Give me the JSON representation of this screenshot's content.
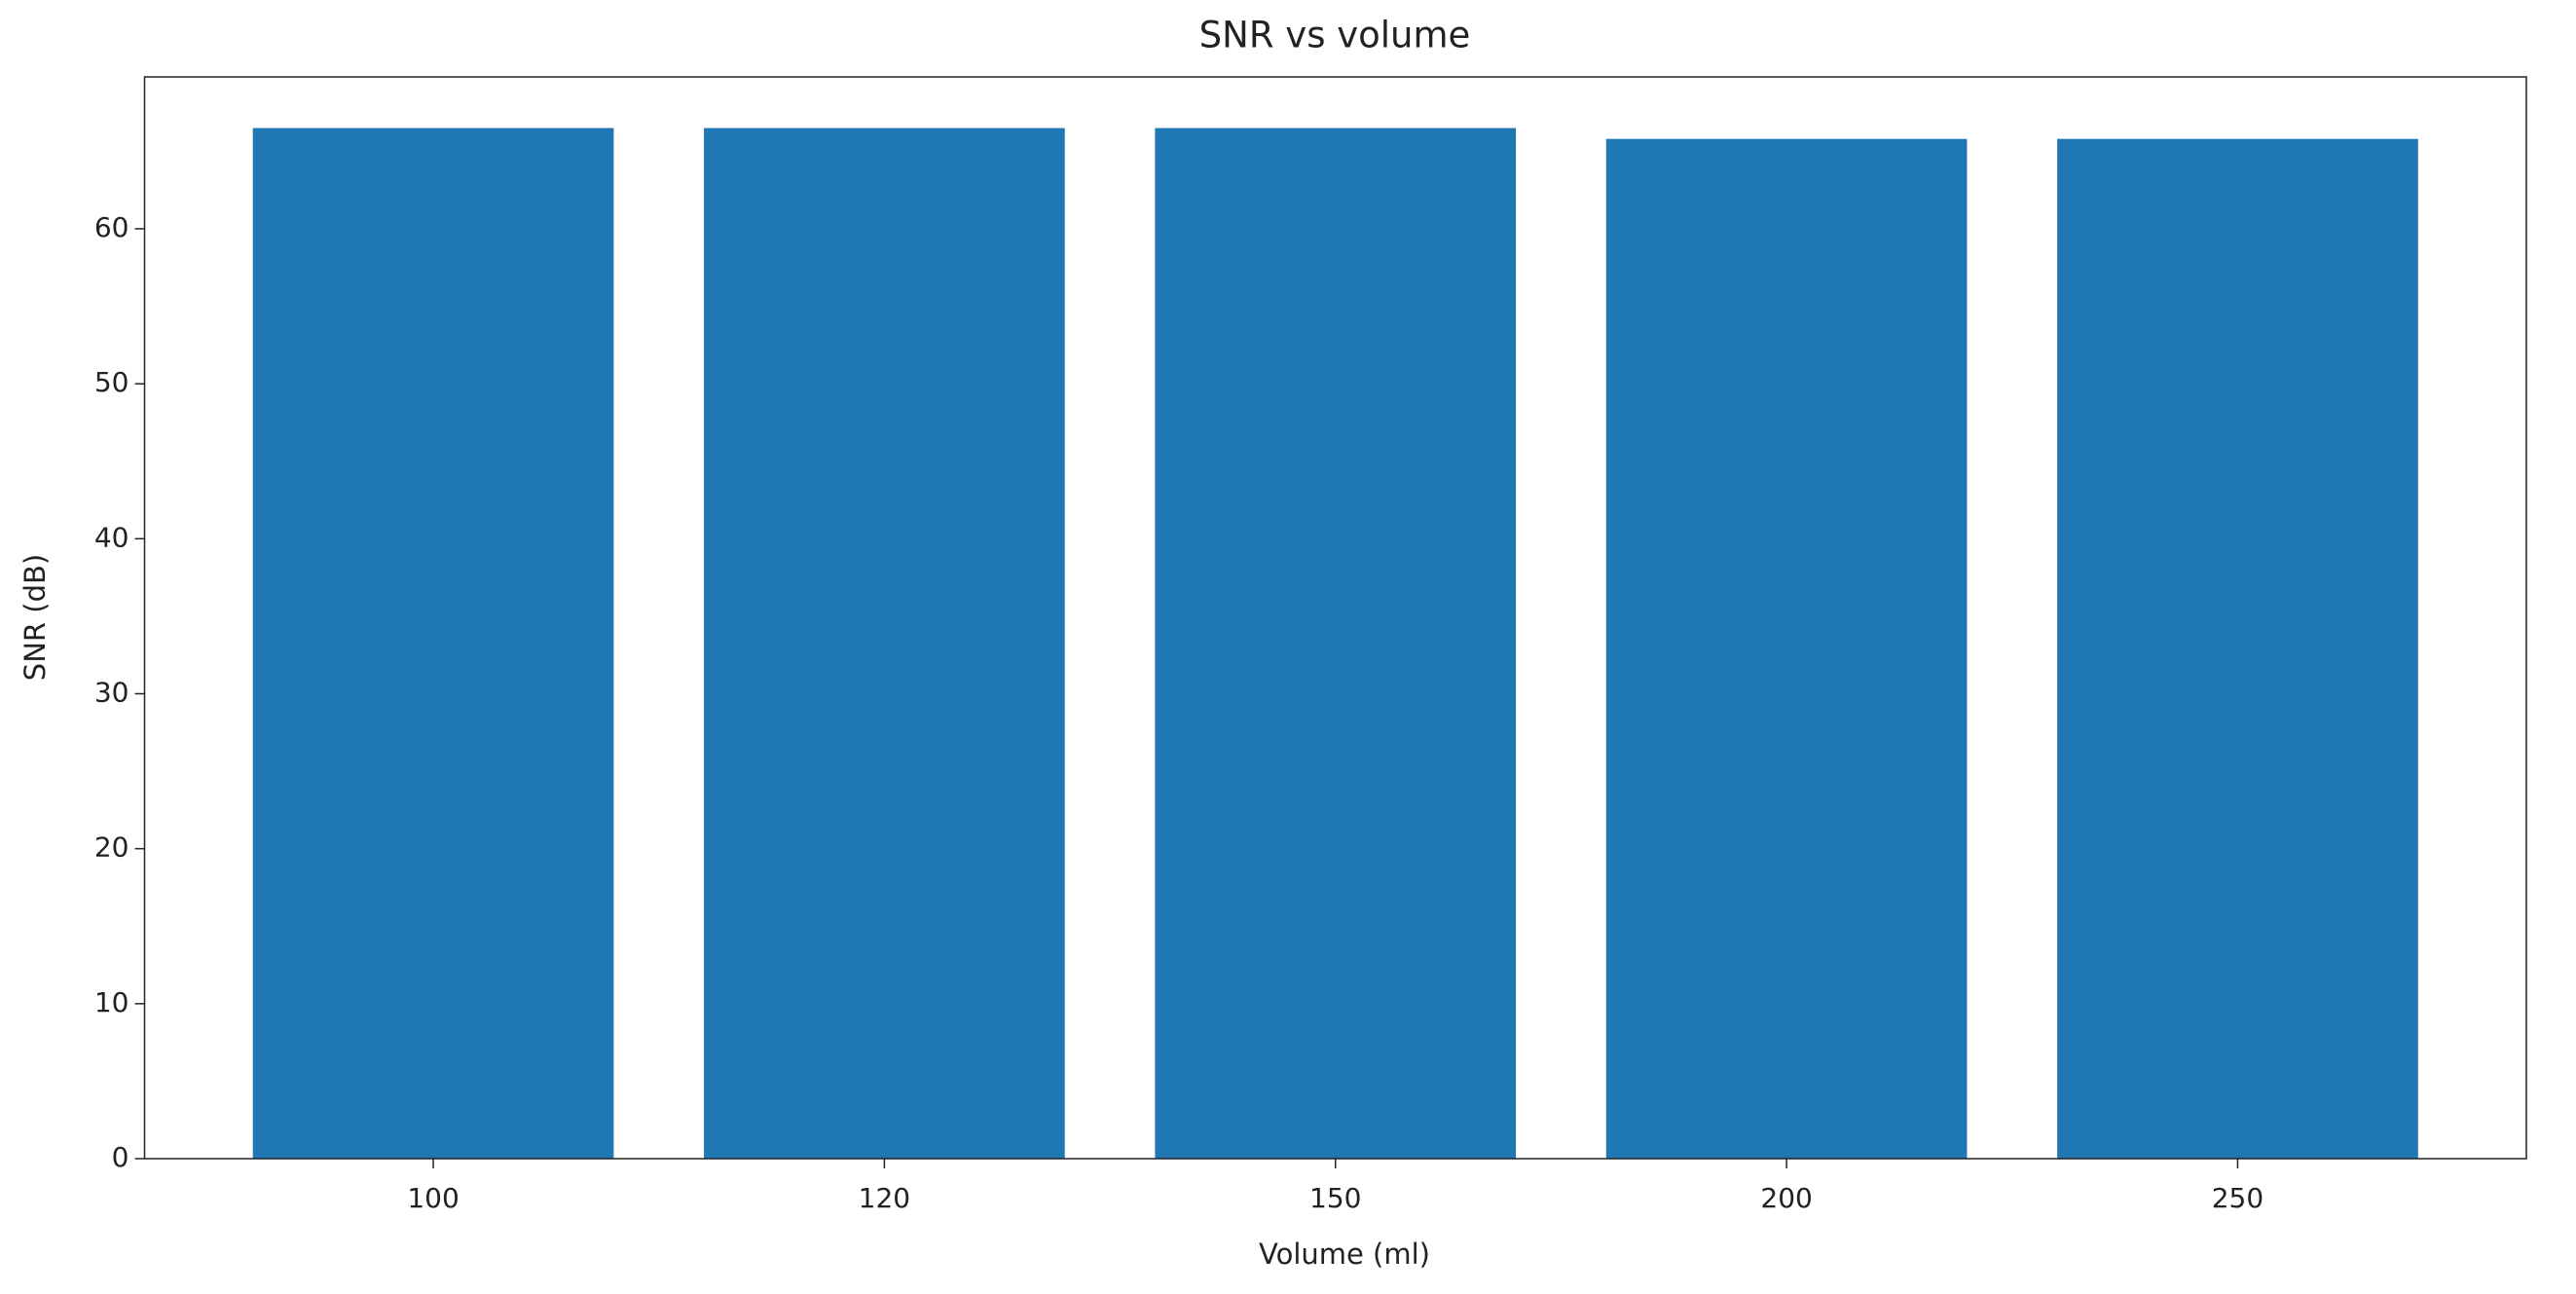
{
  "chart_data": {
    "type": "bar",
    "title": "SNR vs volume",
    "x_label": "Volume (ml)",
    "y_label": "SNR (dB)",
    "categories": [
      "100",
      "120",
      "150",
      "200",
      "250"
    ],
    "values": [
      66.5,
      66.5,
      66.5,
      65.8,
      65.8
    ],
    "color": "#1f77b4",
    "ylim": [
      0,
      69.8
    ],
    "yticks": [
      0,
      10,
      20,
      30,
      40,
      50,
      60
    ],
    "grid": false
  }
}
